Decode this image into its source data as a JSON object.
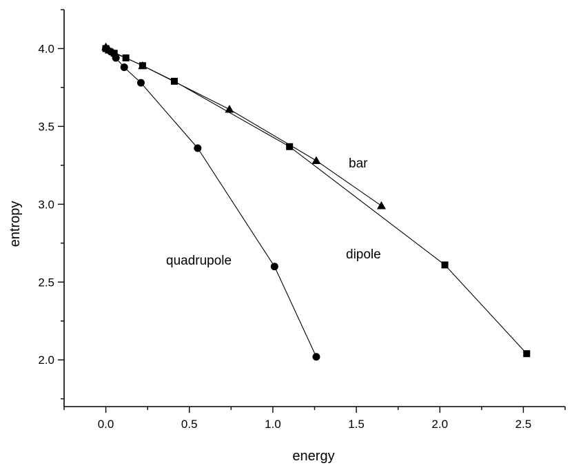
{
  "chart_data": {
    "type": "line",
    "title": "",
    "xlabel": "energy",
    "ylabel": "entropy",
    "xlim": [
      -0.25,
      2.75
    ],
    "ylim": [
      1.7,
      4.25
    ],
    "x_ticks": [
      0.0,
      0.5,
      1.0,
      1.5,
      2.0,
      2.5
    ],
    "x_tick_labels": [
      "0.0",
      "0.5",
      "1.0",
      "1.5",
      "2.0",
      "2.5"
    ],
    "y_ticks": [
      2.0,
      2.5,
      3.0,
      3.5,
      4.0
    ],
    "y_tick_labels": [
      "2.0",
      "2.5",
      "3.0",
      "3.5",
      "4.0"
    ],
    "grid": false,
    "legend": "none",
    "series": [
      {
        "name": "bar",
        "marker": "triangle",
        "x": [
          0.0,
          0.02,
          0.22,
          0.74,
          1.26,
          1.65
        ],
        "y": [
          4.01,
          3.99,
          3.89,
          3.61,
          3.28,
          2.99
        ]
      },
      {
        "name": "dipole",
        "marker": "square",
        "x": [
          0.0,
          0.05,
          0.12,
          0.22,
          0.41,
          1.1,
          2.03,
          2.52
        ],
        "y": [
          4.0,
          3.97,
          3.94,
          3.89,
          3.79,
          3.37,
          2.61,
          2.04
        ]
      },
      {
        "name": "quadrupole",
        "marker": "circle",
        "x": [
          0.0,
          0.03,
          0.06,
          0.11,
          0.21,
          0.55,
          1.01,
          1.26
        ],
        "y": [
          4.0,
          3.98,
          3.94,
          3.88,
          3.78,
          3.36,
          2.6,
          2.02
        ]
      }
    ],
    "annotations": [
      {
        "text": "bar",
        "series": "bar"
      },
      {
        "text": "dipole",
        "series": "dipole"
      },
      {
        "text": "quadrupole",
        "series": "quadrupole"
      }
    ]
  }
}
